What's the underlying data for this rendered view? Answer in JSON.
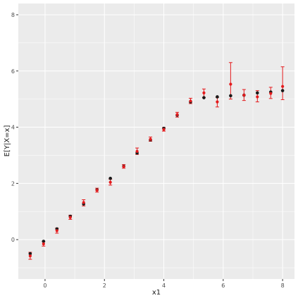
{
  "chart_data": {
    "type": "scatter",
    "title": "",
    "xlabel": "x1",
    "ylabel": "E[Y|X=x]",
    "xlim": [
      -0.9,
      8.4
    ],
    "ylim": [
      -1.4,
      8.4
    ],
    "x_ticks": [
      0,
      2,
      4,
      6,
      8
    ],
    "y_ticks": [
      0,
      2,
      4,
      6,
      8
    ],
    "grid": true,
    "legend": "none",
    "colors": {
      "panel": "#ebebeb",
      "grid": "#ffffff",
      "truth": "#1a1a1a",
      "estimate": "#e41a1c"
    },
    "series": [
      {
        "x": [
          -0.5,
          -0.05,
          0.4,
          0.85,
          1.3,
          1.75,
          2.2,
          2.65,
          3.1,
          3.55,
          4.0,
          4.45,
          4.9,
          5.35,
          5.8,
          6.25,
          6.7,
          7.15,
          7.6,
          8.0
        ],
        "y": [
          -0.5,
          -0.06,
          0.38,
          0.83,
          1.27,
          1.77,
          2.18,
          2.61,
          3.08,
          3.55,
          3.96,
          4.43,
          4.9,
          5.05,
          5.08,
          5.12,
          5.14,
          5.22,
          5.25,
          5.3
        ]
      },
      {
        "x": [
          -0.5,
          -0.05,
          0.4,
          0.85,
          1.3,
          1.75,
          2.2,
          2.65,
          3.1,
          3.55,
          4.0,
          4.45,
          4.9,
          5.35,
          5.8,
          6.25,
          6.7,
          7.15,
          7.6,
          8.0
        ],
        "y": [
          -0.58,
          -0.15,
          0.32,
          0.79,
          1.32,
          1.76,
          2.04,
          2.6,
          3.14,
          3.57,
          3.92,
          4.45,
          4.93,
          5.22,
          4.9,
          5.53,
          5.14,
          5.08,
          5.2,
          5.45
        ],
        "lower": [
          -0.7,
          -0.23,
          0.23,
          0.72,
          1.2,
          1.69,
          1.94,
          2.54,
          3.03,
          3.5,
          3.86,
          4.36,
          4.84,
          5.05,
          4.72,
          5.0,
          4.95,
          4.9,
          5.02,
          4.98
        ],
        "upper": [
          -0.45,
          -0.07,
          0.41,
          0.87,
          1.42,
          1.83,
          2.15,
          2.67,
          3.26,
          3.65,
          3.99,
          4.53,
          5.03,
          5.36,
          5.06,
          6.3,
          5.34,
          5.3,
          5.42,
          6.15
        ]
      }
    ]
  }
}
